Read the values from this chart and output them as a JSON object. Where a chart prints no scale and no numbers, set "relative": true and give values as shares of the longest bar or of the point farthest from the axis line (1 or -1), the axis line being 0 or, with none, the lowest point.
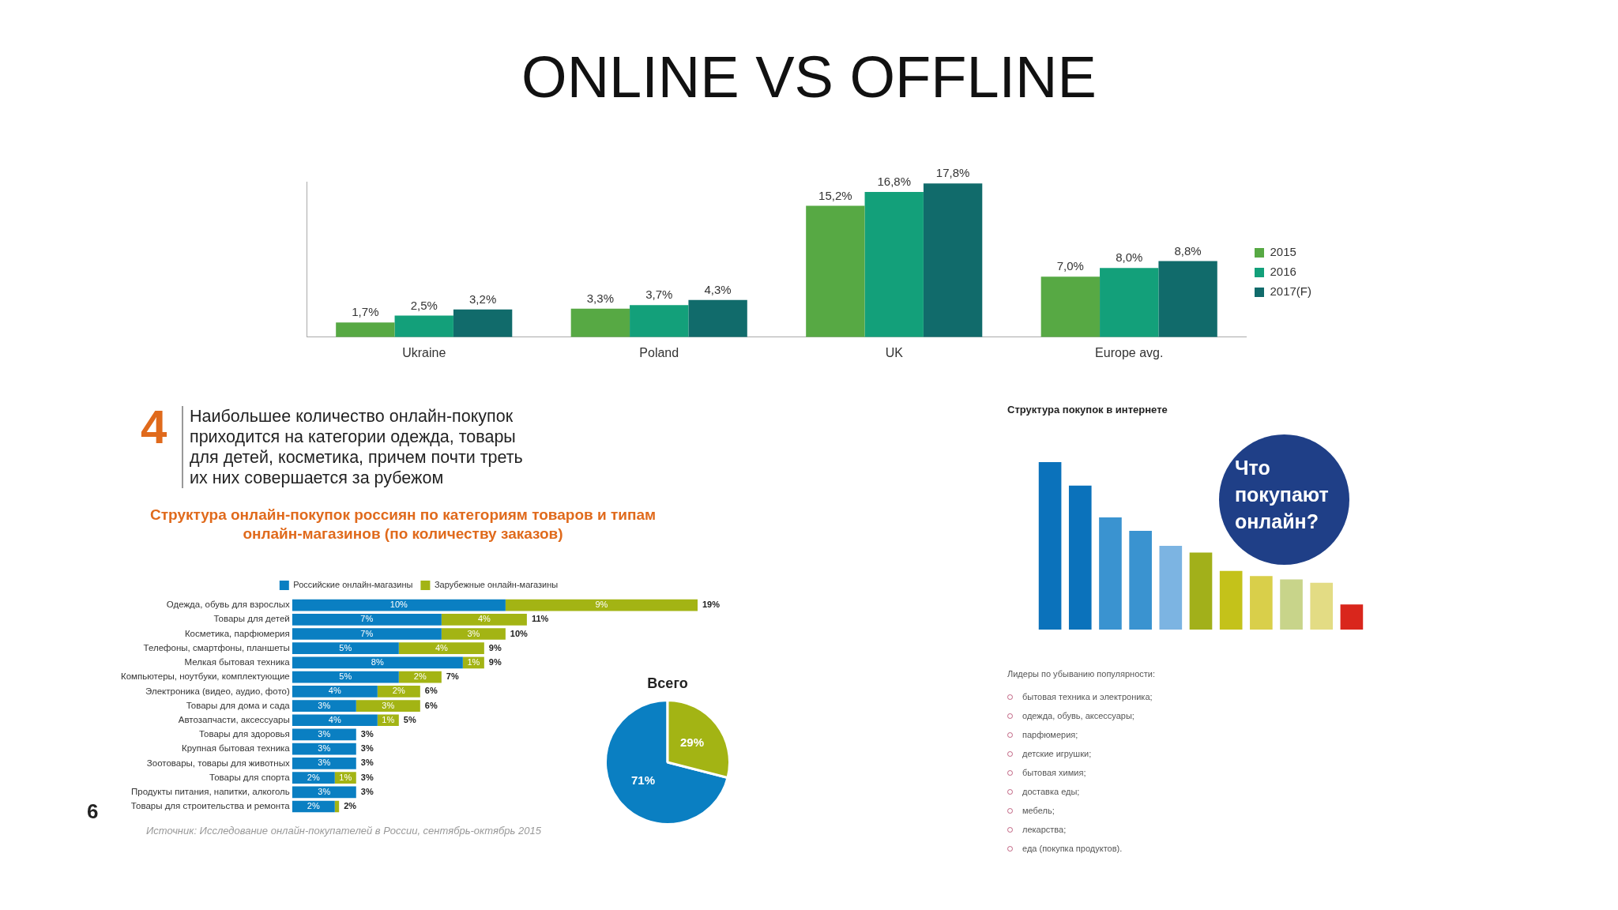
{
  "chart_data": [
    {
      "type": "bar",
      "title": "ONLINE VS OFFLINE",
      "categories": [
        "Ukraine",
        "Poland",
        "UK",
        "Europe avg."
      ],
      "series": [
        {
          "name": "2015",
          "color": "#57a944",
          "values": [
            1.7,
            3.3,
            15.2,
            7.0
          ],
          "value_labels": [
            "1,7%",
            "3,3%",
            "15,2%",
            "7,0%"
          ]
        },
        {
          "name": "2016",
          "color": "#13a07a",
          "values": [
            2.5,
            3.7,
            16.8,
            8.0
          ],
          "value_labels": [
            "2,5%",
            "3,7%",
            "16,8%",
            "8,0%"
          ]
        },
        {
          "name": "2017(F)",
          "color": "#116b6b",
          "values": [
            3.2,
            4.3,
            17.8,
            8.8
          ],
          "value_labels": [
            "3,2%",
            "4,3%",
            "17,8%",
            "8,8%"
          ]
        }
      ],
      "legend": "right",
      "tick_labels": "x",
      "annotations": [
        "6"
      ]
    },
    {
      "type": "bar",
      "orientation": "horizontal",
      "stacked": true,
      "title": "Наибольшее количество онлайн-покупок приходится на категории одежда, товары для детей, косметика, причем почти треть их них совершается за рубежом",
      "subtitle": "Структура онлайн-покупок россиян по категориям товаров и типам онлайн-магазинов (по количеству заказов)",
      "categories": [
        "Одежда, обувь для взрослых",
        "Товары для детей",
        "Косметика, парфюмерия",
        "Телефоны, смартфоны, планшеты",
        "Мелкая бытовая техника",
        "Компьютеры, ноутбуки, комплектующие",
        "Электроника (видео, аудио, фото)",
        "Товары для дома и сада",
        "Автозапчасти, аксессуары",
        "Товары для здоровья",
        "Крупная бытовая техника",
        "Зоотовары, товары для животных",
        "Товары для спорта",
        "Продукты питания, напитки, алкоголь",
        "Товары для строительства и ремонта"
      ],
      "series": [
        {
          "name": "Российские онлайн-магазины",
          "color": "#0a7fc2",
          "values": [
            10,
            7,
            7,
            5,
            8,
            5,
            4,
            3,
            4,
            3,
            3,
            3,
            2,
            3,
            2
          ],
          "value_labels": [
            "10%",
            "7%",
            "7%",
            "5%",
            "8%",
            "5%",
            "4%",
            "3%",
            "4%",
            "3%",
            "3%",
            "3%",
            "2%",
            "3%",
            "2%"
          ]
        },
        {
          "name": "Зарубежные онлайн-магазины",
          "color": "#a3b414",
          "values": [
            9,
            4,
            3,
            4,
            1,
            2,
            2,
            3,
            1,
            null,
            null,
            null,
            1,
            null,
            0.2
          ],
          "value_labels": [
            "9%",
            "4%",
            "3%",
            "4%",
            "1%",
            "2%",
            "2%",
            "3%",
            "1%",
            null,
            null,
            null,
            "1%",
            null,
            null
          ]
        }
      ],
      "totals": [
        "19%",
        "11%",
        "10%",
        "9%",
        "9%",
        "7%",
        "6%",
        "6%",
        "5%",
        "3%",
        "3%",
        "3%",
        "3%",
        "3%",
        "2%"
      ],
      "legend": "top",
      "tick_labels": "y",
      "annotations": [
        "4",
        "Источник: Исследование онлайн-покупателей в России, сентябрь-октябрь 2015"
      ]
    },
    {
      "type": "pie",
      "title": "Всего",
      "categories": [
        null,
        null
      ],
      "values": [
        71,
        29
      ],
      "colors": [
        "#0a7fc2",
        "#a3b414"
      ],
      "value_labels": [
        "71%",
        "29%"
      ]
    },
    {
      "type": "bar",
      "relative": true,
      "title": "Структура покупок в интернете",
      "categories": [
        null,
        null,
        null,
        null,
        null,
        null,
        null,
        null,
        null,
        null,
        null
      ],
      "values": [
        1,
        0.86,
        0.67,
        0.59,
        0.5,
        0.46,
        0.35,
        0.32,
        0.3,
        0.28,
        0.15
      ],
      "colors": [
        "#0b72bb",
        "#0b72bb",
        "#3a93d0",
        "#3a93d0",
        "#7cb4e2",
        "#a2b01a",
        "#c4c21a",
        "#d9cf4a",
        "#c8d48a",
        "#e3dc84",
        "#d9261c"
      ],
      "tick_labels": false,
      "annotations": [
        "Что покупают онлайн?",
        "Лидеры по убыванию популярности:",
        "бытовая техника и электроника;",
        "одежда, обувь, аксессуары;",
        "парфюмерия;",
        "детские игрушки;",
        "бытовая химия;",
        "доставка еды;",
        "мебель;",
        "лекарства;",
        "еда (покупка продуктов)."
      ]
    }
  ]
}
